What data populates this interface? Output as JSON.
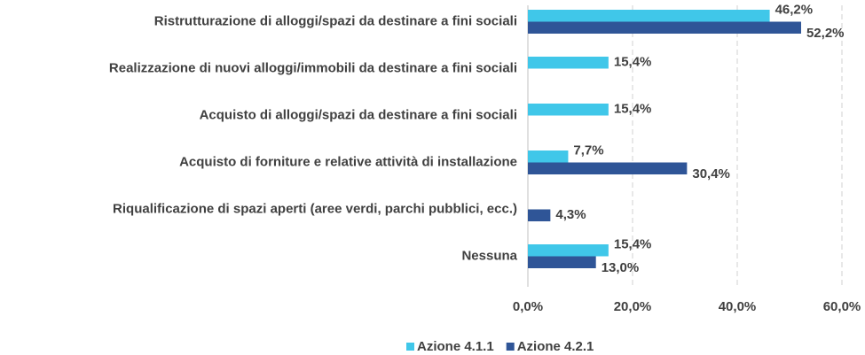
{
  "chart_data": {
    "type": "bar",
    "orientation": "horizontal",
    "categories": [
      "Ristrutturazione di alloggi/spazi da destinare a fini sociali",
      "Realizzazione di nuovi alloggi/immobili da destinare a fini sociali",
      "Acquisto di alloggi/spazi da destinare a fini sociali",
      "Acquisto di forniture e relative attività di installazione",
      "Riqualificazione di spazi aperti (aree verdi, parchi pubblici, ecc.)",
      "Nessuna"
    ],
    "series": [
      {
        "name": "Azione 4.1.1",
        "color": "#40c7e9",
        "values": [
          46.2,
          15.4,
          15.4,
          7.7,
          null,
          15.4
        ],
        "value_labels": [
          "46,2%",
          "15,4%",
          "15,4%",
          "7,7%",
          null,
          "15,4%"
        ]
      },
      {
        "name": "Azione 4.2.1",
        "color": "#2f5597",
        "values": [
          52.2,
          null,
          null,
          30.4,
          4.3,
          13.0
        ],
        "value_labels": [
          "52,2%",
          null,
          null,
          "30,4%",
          "4,3%",
          "13,0%"
        ]
      }
    ],
    "xlim": [
      0,
      60
    ],
    "xticks": [
      {
        "value": 0,
        "label": "0,0%"
      },
      {
        "value": 20,
        "label": "20,0%"
      },
      {
        "value": 40,
        "label": "40,0%"
      },
      {
        "value": 60,
        "label": "60,0%"
      }
    ],
    "grid": true,
    "legend": "bottom"
  }
}
